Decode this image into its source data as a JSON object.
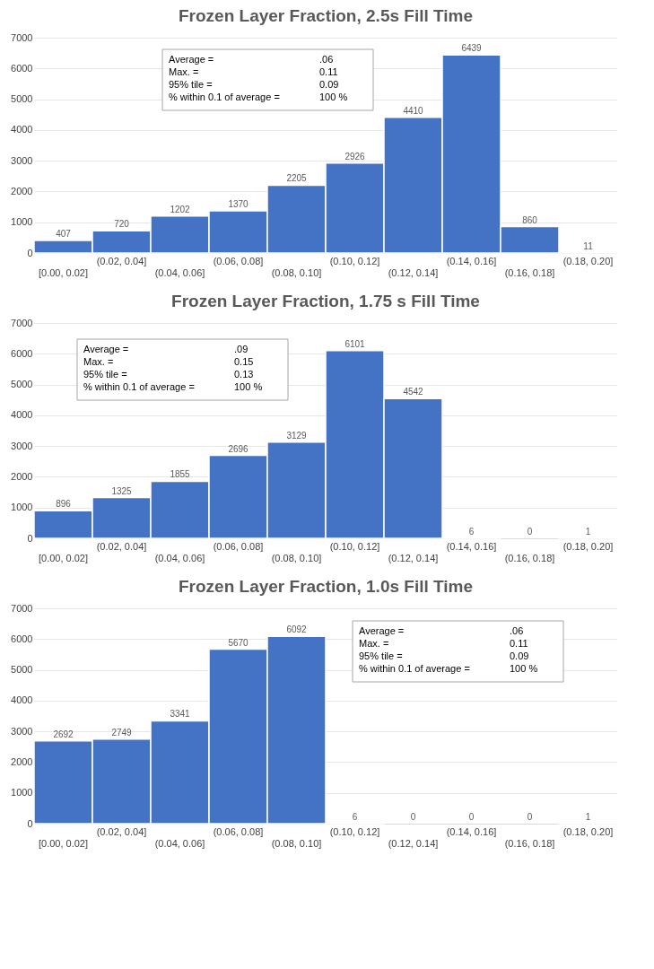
{
  "chart_data": [
    {
      "type": "bar",
      "title": "Frozen Layer Fraction, 2.5s Fill Time",
      "categories": [
        "[0.00, 0.02]",
        "(0.02, 0.04]",
        "(0.04, 0.06]",
        "(0.06, 0.08]",
        "(0.08, 0.10]",
        "(0.10, 0.12]",
        "(0.12, 0.14]",
        "(0.14, 0.16]",
        "(0.16, 0.18]",
        "(0.18, 0.20]"
      ],
      "values": [
        407,
        720,
        1202,
        1370,
        2205,
        2926,
        4410,
        6439,
        860,
        11
      ],
      "color": "#4472c4",
      "ylim": [
        0,
        7000
      ],
      "yticks": [
        0,
        1000,
        2000,
        3000,
        4000,
        5000,
        6000,
        7000
      ],
      "grid": "y",
      "data_labels": true,
      "annotations": [
        "Average =",
        ".06",
        "Max. =",
        "0.11",
        "95% tile =",
        "0.09",
        "% within 0.1 of average =",
        "100 %"
      ]
    },
    {
      "type": "bar",
      "title": "Frozen Layer Fraction, 1.75 s Fill Time",
      "categories": [
        "[0.00, 0.02]",
        "(0.02, 0.04]",
        "(0.04, 0.06]",
        "(0.06, 0.08]",
        "(0.08, 0.10]",
        "(0.10, 0.12]",
        "(0.12, 0.14]",
        "(0.14, 0.16]",
        "(0.16, 0.18]",
        "(0.18, 0.20]"
      ],
      "values": [
        896,
        1325,
        1855,
        2696,
        3129,
        6101,
        4542,
        6,
        0,
        1
      ],
      "color": "#4472c4",
      "ylim": [
        0,
        7000
      ],
      "yticks": [
        0,
        1000,
        2000,
        3000,
        4000,
        5000,
        6000,
        7000
      ],
      "grid": "y",
      "data_labels": true,
      "annotations": [
        "Average =",
        ".09",
        "Max. =",
        "0.15",
        "95% tile =",
        "0.13",
        "% within 0.1 of average =",
        "100 %"
      ]
    },
    {
      "type": "bar",
      "title": "Frozen Layer Fraction, 1.0s Fill Time",
      "categories": [
        "[0.00, 0.02]",
        "(0.02, 0.04]",
        "(0.04, 0.06]",
        "(0.06, 0.08]",
        "(0.08, 0.10]",
        "(0.10, 0.12]",
        "(0.12, 0.14]",
        "(0.14, 0.16]",
        "(0.16, 0.18]",
        "(0.18, 0.20]"
      ],
      "values": [
        2692,
        2749,
        3341,
        5670,
        6092,
        6,
        0,
        0,
        0,
        1
      ],
      "color": "#4472c4",
      "ylim": [
        0,
        7000
      ],
      "yticks": [
        0,
        1000,
        2000,
        3000,
        4000,
        5000,
        6000,
        7000
      ],
      "grid": "y",
      "data_labels": true,
      "annotations": [
        "Average =",
        ".06",
        "Max. =",
        "0.11",
        "95% tile =",
        "0.09",
        "% within 0.1 of average =",
        "100 %"
      ]
    }
  ]
}
